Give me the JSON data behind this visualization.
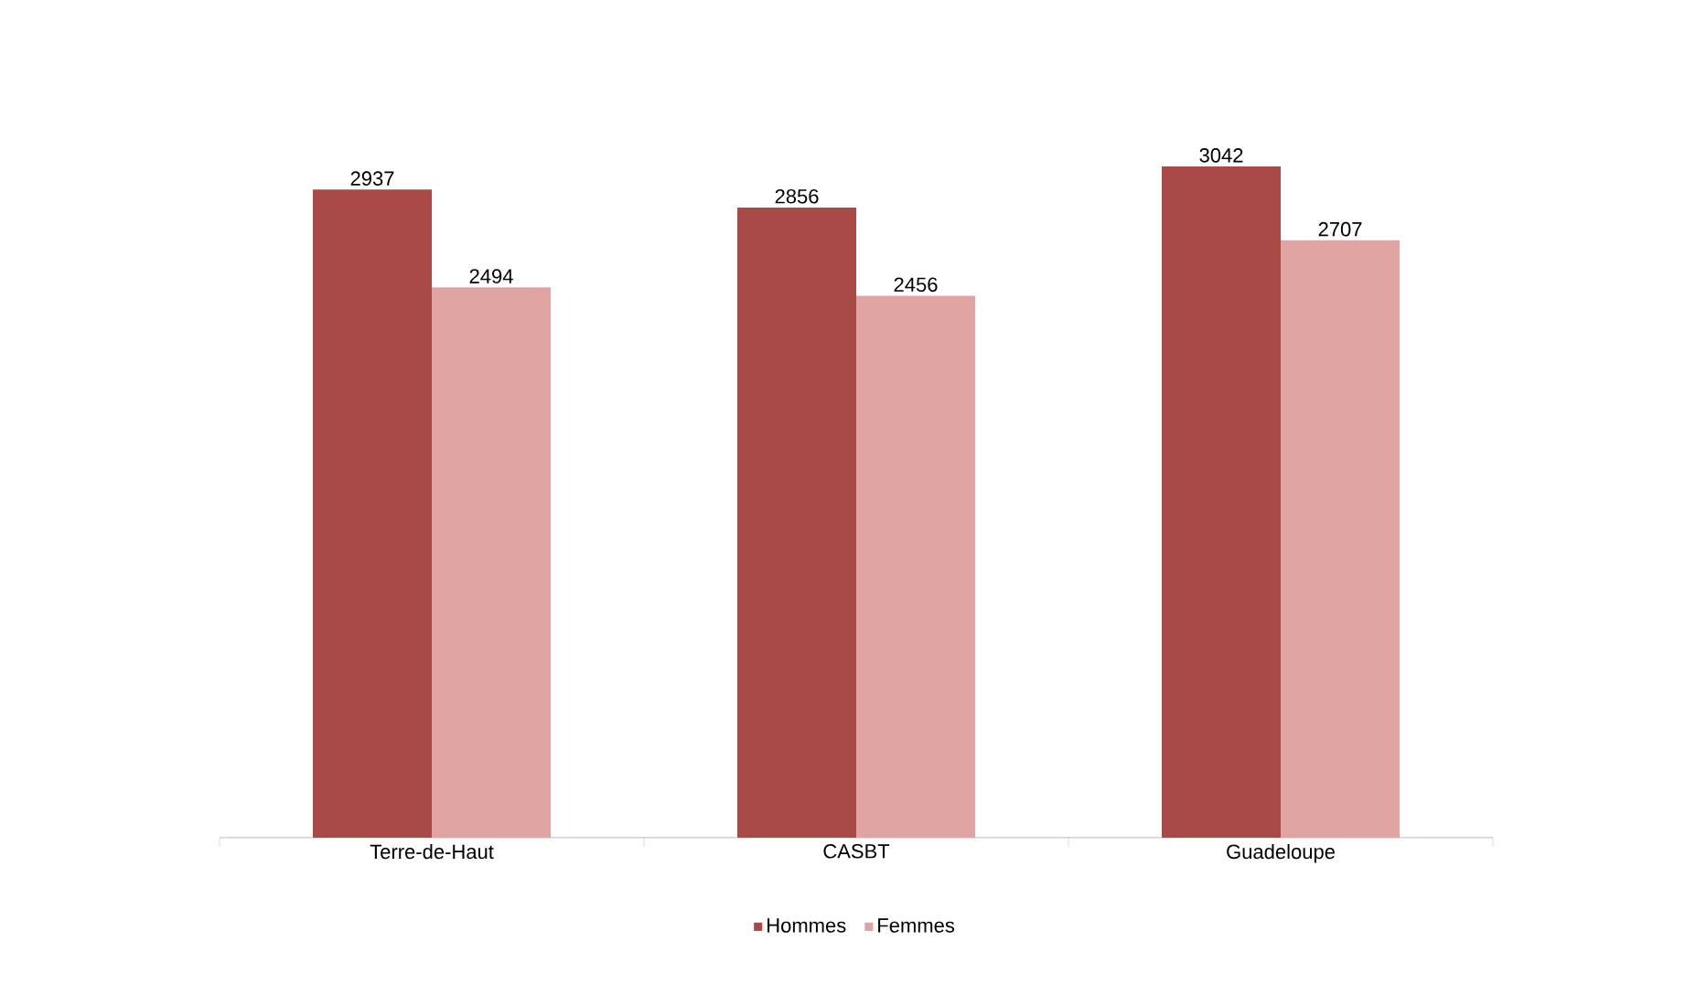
{
  "chart_data": {
    "type": "bar",
    "categories": [
      "Terre-de-Haut",
      "CASBT",
      "Guadeloupe"
    ],
    "series": [
      {
        "name": "Hommes",
        "color": "#a84a45",
        "values": [
          2937,
          2856,
          3042
        ]
      },
      {
        "name": "Femmes",
        "color": "#e0a5a2",
        "values": [
          2494,
          2456,
          2707
        ]
      }
    ],
    "data_labels": true,
    "legend": "bottom"
  }
}
